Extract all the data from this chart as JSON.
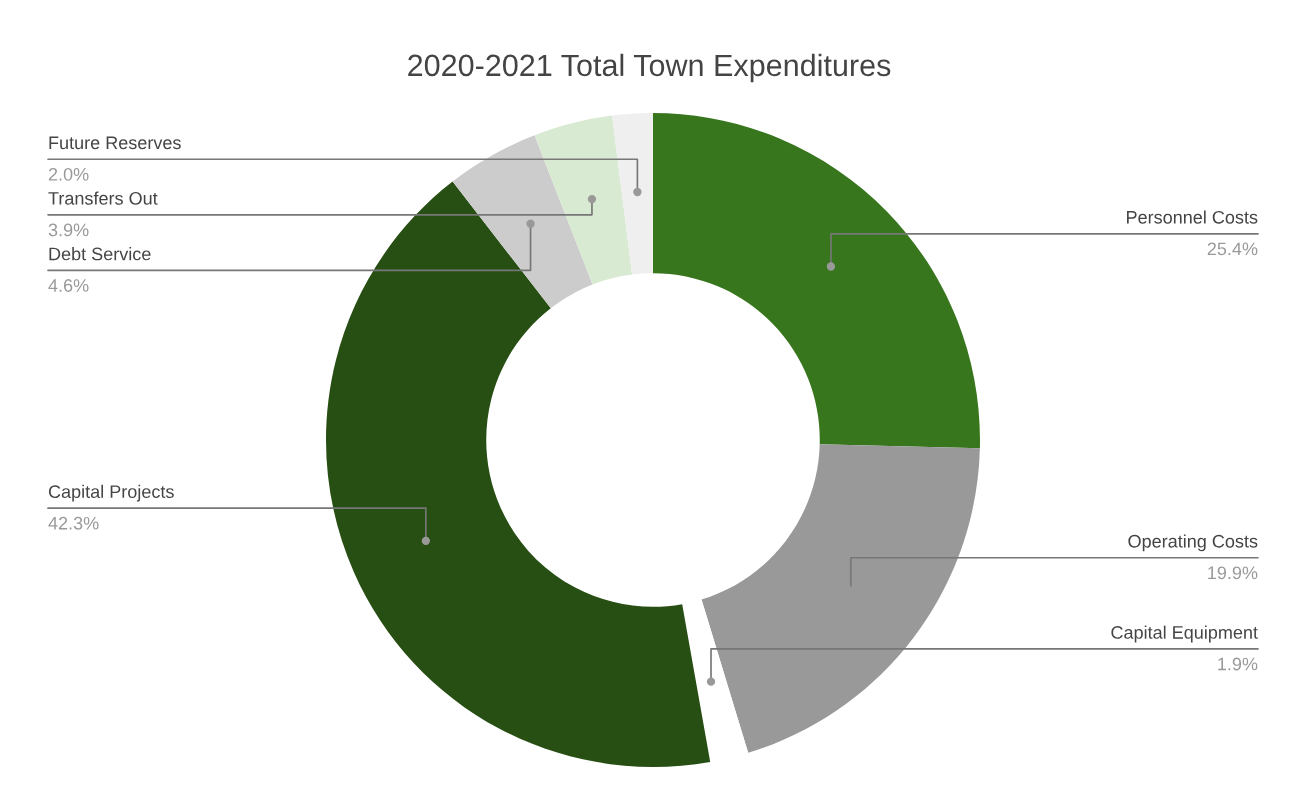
{
  "chart_data": {
    "type": "donut",
    "title": "2020-2021 Total Town Expenditures",
    "categories": [
      "Personnel Costs",
      "Operating Costs",
      "Capital Equipment",
      "Capital Projects",
      "Debt Service",
      "Transfers Out",
      "Future Reserves"
    ],
    "values": [
      25.4,
      19.9,
      1.9,
      42.3,
      4.6,
      3.9,
      2.0
    ],
    "value_labels": [
      "25.4%",
      "19.9%",
      "1.9%",
      "42.3%",
      "4.6%",
      "3.9%",
      "2.0%"
    ],
    "colors": [
      "#38761d",
      "#999999",
      "#ffffff",
      "#274e13",
      "#cccccc",
      "#d9ead3",
      "#efefef"
    ],
    "legend": false
  }
}
